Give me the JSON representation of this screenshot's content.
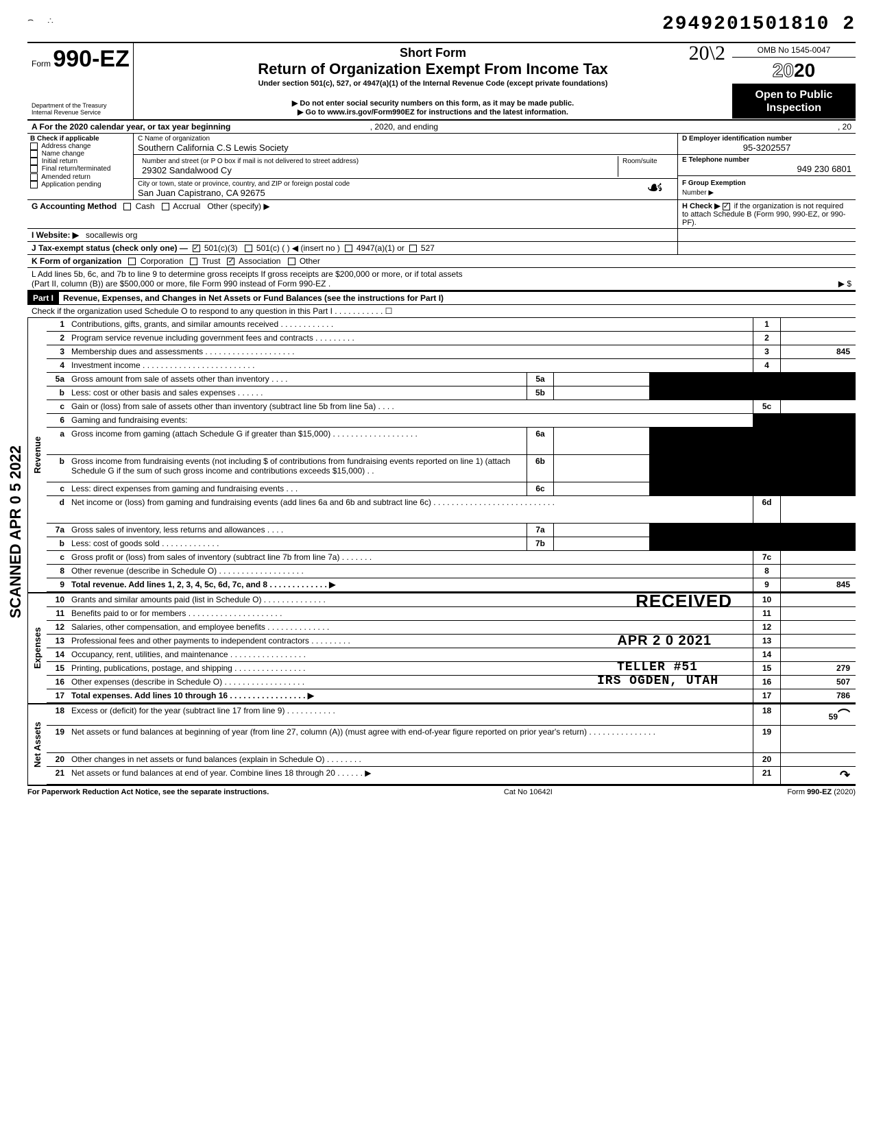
{
  "page_id": "2949201501810 2",
  "scanned_stamp": "SCANNED APR 0 5 2022",
  "form": {
    "form_word": "Form",
    "form_number": "990-EZ",
    "dept1": "Department of the Treasury",
    "dept2": "Internal Revenue Service",
    "short_form": "Short Form",
    "title": "Return of Organization Exempt From Income Tax",
    "subtitle": "Under section 501(c), 527, or 4947(a)(1) of the Internal Revenue Code (except private foundations)",
    "warning": "▶ Do not enter social security numbers on this form, as it may be made public.",
    "goto": "▶ Go to www.irs.gov/Form990EZ for instructions and the latest information.",
    "handwritten_year": "20\\2",
    "omb": "OMB No 1545-0047",
    "year": "2020",
    "open_public": "Open to Public Inspection"
  },
  "sectionA": {
    "label_a": "A For the 2020 calendar year, or tax year beginning",
    "mid": ", 2020, and ending",
    "end": ", 20"
  },
  "sectionB": {
    "header": "B Check if applicable",
    "items": [
      "Address change",
      "Name change",
      "Initial return",
      "Final return/terminated",
      "Amended return",
      "Application pending"
    ]
  },
  "sectionC": {
    "name_label": "C Name of organization",
    "name": "Southern California C.S Lewis Society",
    "street_label": "Number and street (or P O  box if mail is not delivered to street address)",
    "room_label": "Room/suite",
    "street": "29302 Sandalwood Cy",
    "city_label": "City or town, state or province, country, and ZIP or foreign postal code",
    "city": "San Juan Capistrano, CA 92675"
  },
  "sectionD": {
    "label": "D Employer identification number",
    "value": "95-3202557"
  },
  "sectionE": {
    "label": "E Telephone number",
    "value": "949 230 6801"
  },
  "sectionF": {
    "label": "F Group Exemption",
    "label2": "Number ▶"
  },
  "sectionG": {
    "label": "G Accounting Method",
    "opts": [
      "Cash",
      "Accrual"
    ],
    "other": "Other (specify) ▶"
  },
  "sectionH": {
    "label": "H Check ▶",
    "text": "if the organization is not required to attach Schedule B (Form 990, 990-EZ, or 990-PF)."
  },
  "sectionI": {
    "label": "I Website: ▶",
    "value": "socallewis org"
  },
  "sectionJ": {
    "label": "J Tax-exempt status (check only one) —",
    "opts": [
      "501(c)(3)",
      "501(c) (        ) ◀ (insert no )",
      "4947(a)(1) or",
      "527"
    ]
  },
  "sectionK": {
    "label": "K Form of organization",
    "opts": [
      "Corporation",
      "Trust",
      "Association",
      "Other"
    ]
  },
  "sectionL": {
    "text1": "L Add lines 5b, 6c, and 7b to line 9 to determine gross receipts If gross receipts are $200,000 or more, or if total assets",
    "text2": "(Part II, column (B)) are $500,000 or more, file Form 990 instead of Form 990-EZ .",
    "arrow": "▶  $"
  },
  "part1": {
    "bar": "Part I",
    "title": "Revenue, Expenses, and Changes in Net Assets or Fund Balances (see the instructions for Part I)",
    "sub": "Check if the organization used Schedule O to respond to any question in this Part I . . . . . . . . . . . ☐"
  },
  "sections": [
    {
      "side": "Revenue",
      "rows": [
        {
          "n": "1",
          "d": "Contributions, gifts, grants, and similar amounts received . . . . . . . . . . . .",
          "rn": "1",
          "rv": ""
        },
        {
          "n": "2",
          "d": "Program service revenue including government fees and contracts . . . . . . . . .",
          "rn": "2",
          "rv": ""
        },
        {
          "n": "3",
          "d": "Membership dues and assessments . . . . . . . . . . . . . . . . . . . .",
          "rn": "3",
          "rv": "845"
        },
        {
          "n": "4",
          "d": "Investment income . . . . . . . . . . . . . . . . . . . . . . . . .",
          "rn": "4",
          "rv": ""
        },
        {
          "n": "5a",
          "d": "Gross amount from sale of assets other than inventory . . . .",
          "sub": "5a",
          "shaded": true
        },
        {
          "n": "b",
          "d": "Less: cost or other basis and sales expenses . . . . . .",
          "sub": "5b",
          "shaded": true
        },
        {
          "n": "c",
          "d": "Gain or (loss) from sale of assets other than inventory (subtract line 5b from line 5a) . . . .",
          "rn": "5c",
          "rv": ""
        },
        {
          "n": "6",
          "d": "Gaming and fundraising events:",
          "noval": true
        },
        {
          "n": "a",
          "d": "Gross income from gaming (attach Schedule G if greater than $15,000) . . . . . . . . . . . . . . . . . . .",
          "sub": "6a",
          "shaded": true,
          "tall": true
        },
        {
          "n": "b",
          "d": "Gross income from fundraising events (not including  $                    of contributions from fundraising events reported on line 1) (attach Schedule G if the sum of such gross income and contributions exceeds $15,000) . .",
          "sub": "6b",
          "shaded": true,
          "tall": true
        },
        {
          "n": "c",
          "d": "Less: direct expenses from gaming and fundraising events . . .",
          "sub": "6c",
          "shaded": true
        },
        {
          "n": "d",
          "d": "Net income or (loss) from gaming and fundraising events (add lines 6a and 6b and subtract line 6c) . . . . . . . . . . . . . . . . . . . . . . . . . . .",
          "rn": "6d",
          "rv": "",
          "tall": true
        },
        {
          "n": "7a",
          "d": "Gross sales of inventory, less returns and allowances . . . .",
          "sub": "7a",
          "shaded": true
        },
        {
          "n": "b",
          "d": "Less: cost of goods sold . . . . . . . . . . . . .",
          "sub": "7b",
          "shaded": true
        },
        {
          "n": "c",
          "d": "Gross profit or (loss) from sales of inventory (subtract line 7b from line 7a) . . . . . . .",
          "rn": "7c",
          "rv": ""
        },
        {
          "n": "8",
          "d": "Other revenue (describe in Schedule O) . . . . . . . . . . . . . . . . . . .",
          "rn": "8",
          "rv": ""
        },
        {
          "n": "9",
          "d": "Total revenue. Add lines 1, 2, 3, 4, 5c, 6d, 7c, and 8 . . . . . . . . . . . . .  ▶",
          "rn": "9",
          "rv": "845",
          "bold": true
        }
      ]
    },
    {
      "side": "Expenses",
      "rows": [
        {
          "n": "10",
          "d": "Grants and similar amounts paid (list in Schedule O) . . . . . . . . . . . . . .",
          "rn": "10",
          "rv": "",
          "stamp": "RECEIVED"
        },
        {
          "n": "11",
          "d": "Benefits paid to or for members . . . . . . . . . . . . . . . . . . . . .",
          "rn": "11",
          "rv": ""
        },
        {
          "n": "12",
          "d": "Salaries, other compensation, and employee benefits . . . . . . . . . . . . . .",
          "rn": "12",
          "rv": ""
        },
        {
          "n": "13",
          "d": "Professional fees and other payments to independent contractors . . . . . . . . .",
          "rn": "13",
          "rv": "",
          "stamp_date": "APR 2 0 2021"
        },
        {
          "n": "14",
          "d": "Occupancy, rent, utilities, and maintenance . . . . . . . . . . . . . . . . .",
          "rn": "14",
          "rv": ""
        },
        {
          "n": "15",
          "d": "Printing, publications, postage, and shipping . . . . . . . . . . . . . . . .",
          "rn": "15",
          "rv": "279",
          "stamp_teller": "TELLER #51"
        },
        {
          "n": "16",
          "d": "Other expenses (describe in Schedule O) . . . . . . . . . . . . . . . . . .",
          "rn": "16",
          "rv": "507",
          "stamp_irs": "IRS OGDEN, UTAH"
        },
        {
          "n": "17",
          "d": "Total expenses. Add lines 10 through 16 . . . . . . . . . . . . . . . . .  ▶",
          "rn": "17",
          "rv": "786",
          "bold": true
        }
      ]
    },
    {
      "side": "Net Assets",
      "rows": [
        {
          "n": "18",
          "d": "Excess or (deficit) for the year (subtract line 17 from line 9) . . . . . . . . . . .",
          "rn": "18",
          "rv": "59",
          "sig": true
        },
        {
          "n": "19",
          "d": "Net assets or fund balances at beginning of year (from line 27, column (A)) (must agree with end-of-year figure reported on prior year's return) . . . . . . . . . . . . . . .",
          "rn": "19",
          "rv": "",
          "tall": true,
          "shaded_top": true
        },
        {
          "n": "20",
          "d": "Other changes in net assets or fund balances (explain in Schedule O) . . . . . . . .",
          "rn": "20",
          "rv": ""
        },
        {
          "n": "21",
          "d": "Net assets or fund balances at end of year. Combine lines 18 through 20 . . . . . .  ▶",
          "rn": "21",
          "rv": "",
          "sig2": true
        }
      ]
    }
  ],
  "footer": {
    "left": "For Paperwork Reduction Act Notice, see the separate instructions.",
    "mid": "Cat No 10642I",
    "right": "Form 990-EZ (2020)"
  }
}
